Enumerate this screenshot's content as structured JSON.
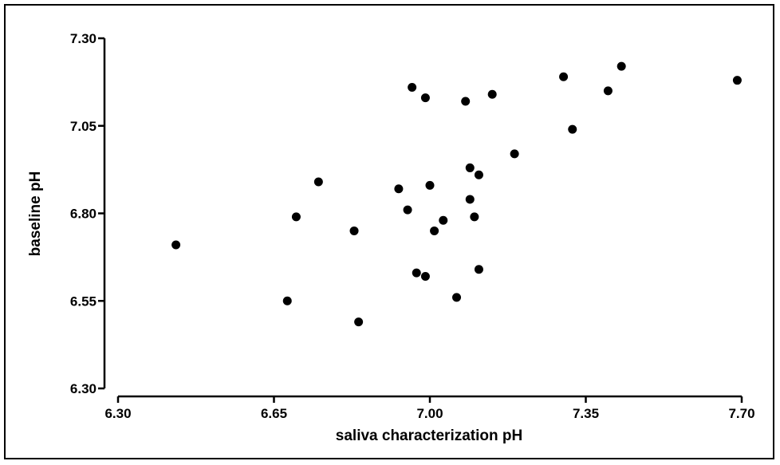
{
  "chart_data": {
    "type": "scatter",
    "title": "",
    "xlabel": "saliva characterization pH",
    "ylabel": "baseline pH",
    "xlim": [
      6.3,
      7.7
    ],
    "ylim": [
      6.3,
      7.3
    ],
    "x_ticks": [
      6.3,
      6.65,
      7.0,
      7.35,
      7.7
    ],
    "x_tick_labels": [
      "6.30",
      "6.65",
      "7.00",
      "7.35",
      "7.70"
    ],
    "y_ticks": [
      6.3,
      6.55,
      6.8,
      7.05,
      7.3
    ],
    "y_tick_labels": [
      "6.30",
      "6.55",
      "6.80",
      "7.05",
      "7.30"
    ],
    "grid": false,
    "legend": "none",
    "marker_color": "#000000",
    "points": [
      {
        "x": 6.43,
        "y": 6.71
      },
      {
        "x": 6.68,
        "y": 6.55
      },
      {
        "x": 6.7,
        "y": 6.79
      },
      {
        "x": 6.75,
        "y": 6.89
      },
      {
        "x": 6.83,
        "y": 6.75
      },
      {
        "x": 6.84,
        "y": 6.49
      },
      {
        "x": 6.93,
        "y": 6.87
      },
      {
        "x": 6.95,
        "y": 6.81
      },
      {
        "x": 6.96,
        "y": 7.16
      },
      {
        "x": 6.97,
        "y": 6.63
      },
      {
        "x": 6.99,
        "y": 6.62
      },
      {
        "x": 6.99,
        "y": 7.13
      },
      {
        "x": 7.0,
        "y": 6.88
      },
      {
        "x": 7.01,
        "y": 6.75
      },
      {
        "x": 7.03,
        "y": 6.78
      },
      {
        "x": 7.06,
        "y": 6.56
      },
      {
        "x": 7.08,
        "y": 7.12
      },
      {
        "x": 7.09,
        "y": 6.93
      },
      {
        "x": 7.09,
        "y": 6.84
      },
      {
        "x": 7.1,
        "y": 6.79
      },
      {
        "x": 7.11,
        "y": 6.91
      },
      {
        "x": 7.11,
        "y": 6.64
      },
      {
        "x": 7.14,
        "y": 7.14
      },
      {
        "x": 7.19,
        "y": 6.97
      },
      {
        "x": 7.3,
        "y": 7.19
      },
      {
        "x": 7.32,
        "y": 7.04
      },
      {
        "x": 7.4,
        "y": 7.15
      },
      {
        "x": 7.43,
        "y": 7.22
      },
      {
        "x": 7.69,
        "y": 7.18
      }
    ]
  }
}
